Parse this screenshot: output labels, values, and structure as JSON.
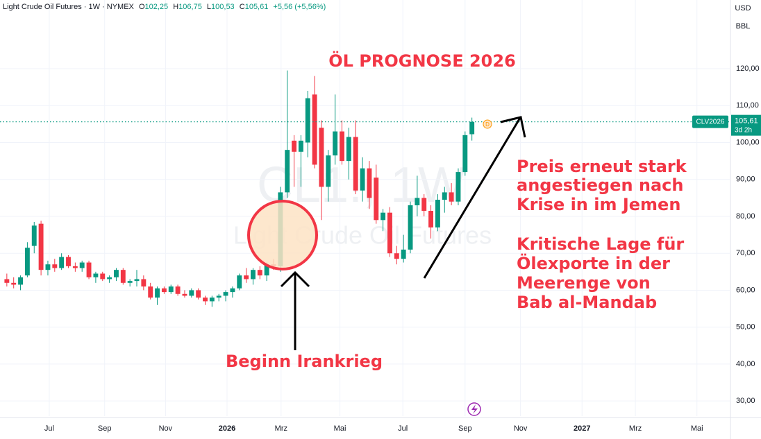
{
  "chart_data": {
    "type": "candlestick",
    "header": {
      "symbol": "Light Crude Oil Futures · 1W · NYMEX",
      "o_label": "O",
      "o": "102,25",
      "h_label": "H",
      "h": "106,75",
      "l_label": "L",
      "l": "100,53",
      "c_label": "C",
      "c": "105,61",
      "change": "+5,56 (+5,56%)"
    },
    "currency": "USD",
    "unit": "BBL",
    "watermark": [
      "CL1!, 1W",
      "Light Crude Oil Futures"
    ],
    "title": "ÖL PROGNOSE 2026",
    "annotations": [
      "Beginn Irankrieg",
      "Preis erneut stark",
      "angestiegen nach",
      "Krise in im Jemen",
      "Kritische Lage für",
      "Ölexporte in der",
      "Meerenge von",
      "Bab al-Mandab"
    ],
    "last_price": {
      "value": 105.61,
      "label": "105,61",
      "countdown": "3d 2h",
      "contract": "CLV2026"
    },
    "up_color": "#089981",
    "down_color": "#f23645",
    "xlim": [
      0,
      106.8
    ],
    "ylim": [
      25.9,
      138.6
    ],
    "xticks": [
      {
        "value": 7.2,
        "label": "Jul"
      },
      {
        "value": 15.3,
        "label": "Sep"
      },
      {
        "value": 24.2,
        "label": "Nov"
      },
      {
        "value": 33.2,
        "label": "2026"
      },
      {
        "value": 41.1,
        "label": "Mrz"
      },
      {
        "value": 49.7,
        "label": "Mai"
      },
      {
        "value": 58.9,
        "label": "Jul"
      },
      {
        "value": 68.0,
        "label": "Sep"
      },
      {
        "value": 76.1,
        "label": "Nov"
      },
      {
        "value": 85.1,
        "label": "2027"
      },
      {
        "value": 92.9,
        "label": "Mrz"
      },
      {
        "value": 101.9,
        "label": "Mai"
      }
    ],
    "yticks": [
      {
        "value": 30,
        "label": "30,00"
      },
      {
        "value": 40,
        "label": "40,00"
      },
      {
        "value": 50,
        "label": "50,00"
      },
      {
        "value": 60,
        "label": "60,00"
      },
      {
        "value": 70,
        "label": "70,00"
      },
      {
        "value": 80,
        "label": "80,00"
      },
      {
        "value": 90,
        "label": "90,00"
      },
      {
        "value": 100,
        "label": "100,00"
      },
      {
        "value": 110,
        "label": "110,00"
      },
      {
        "value": 120,
        "label": "120,00"
      }
    ],
    "grid": true,
    "x": [
      1,
      2,
      3,
      4,
      5,
      6,
      7,
      8,
      9,
      10,
      11,
      12,
      13,
      14,
      15,
      16,
      17,
      18,
      19,
      20,
      21,
      22,
      23,
      24,
      25,
      26,
      27,
      28,
      29,
      30,
      31,
      32,
      33,
      34,
      35,
      36,
      37,
      38,
      39,
      40,
      41,
      42,
      43,
      44,
      45,
      46,
      47,
      48,
      49,
      50,
      51,
      52,
      53,
      54,
      55,
      56,
      57,
      58,
      59,
      60,
      61,
      62,
      63,
      64,
      65,
      66,
      67,
      68,
      69
    ],
    "open": [
      63,
      62,
      61.5,
      64,
      72,
      78,
      65.5,
      67,
      66,
      69,
      66.5,
      66,
      67.5,
      63.5,
      64.5,
      63,
      63.5,
      65.5,
      62,
      62.5,
      63,
      61,
      58,
      60.5,
      59.5,
      61,
      59,
      58.5,
      60,
      58,
      57,
      58,
      58.5,
      59.5,
      60.5,
      64,
      63,
      65.5,
      64,
      67,
      66.5,
      86.5,
      100.5,
      97.5,
      100,
      113,
      104,
      88,
      96.5,
      103,
      95,
      101.5,
      87,
      93,
      90.5,
      79,
      81,
      70,
      68.5,
      71,
      83,
      85,
      81.5,
      77,
      84.5,
      86.5,
      84,
      92,
      102.25
    ],
    "high": [
      64.5,
      63.5,
      64,
      73,
      78.5,
      78.8,
      68,
      68.5,
      70,
      69.5,
      67.5,
      68,
      68,
      65,
      65,
      64,
      66,
      66,
      63,
      65.5,
      64,
      62,
      61,
      61,
      61.5,
      61.5,
      60,
      60.5,
      60.5,
      58.5,
      58.5,
      59,
      60,
      61,
      64.5,
      66,
      66,
      66.5,
      67.5,
      68.5,
      88,
      119.5,
      102,
      102,
      114,
      118,
      106,
      98,
      113,
      106,
      104,
      106,
      96,
      95,
      94,
      82,
      82.5,
      72,
      75,
      84,
      91,
      86,
      83,
      86,
      88,
      89,
      93,
      103,
      106.75
    ],
    "low": [
      61,
      60.5,
      60,
      63.5,
      70,
      64,
      64,
      65,
      65.5,
      66,
      65,
      65,
      63,
      62,
      62.5,
      62,
      62.5,
      61.5,
      61,
      61,
      60,
      57.5,
      56,
      59,
      59,
      58.5,
      58,
      58,
      57.5,
      56,
      55.5,
      57,
      57,
      58,
      60,
      62,
      61.5,
      63,
      62.5,
      65.5,
      65,
      85,
      88,
      88,
      96,
      93,
      79,
      84,
      94,
      94,
      90,
      86,
      84,
      82,
      78,
      76,
      69,
      67,
      67.5,
      70,
      80,
      80,
      74,
      76,
      81,
      83,
      83,
      91,
      100.53
    ],
    "close": [
      62,
      61.5,
      63.5,
      71.5,
      77.5,
      65.5,
      67,
      66,
      69,
      66.5,
      66,
      67.5,
      63.5,
      64.5,
      63,
      63.5,
      65.5,
      62,
      62.5,
      63,
      61,
      58,
      60.5,
      59.5,
      61,
      59,
      58.5,
      60,
      58,
      57,
      58,
      58.5,
      59.5,
      60.5,
      64,
      63,
      65.5,
      64,
      67,
      66.5,
      86.5,
      98,
      97.5,
      100.5,
      112,
      94,
      88,
      96.5,
      103,
      95,
      101.5,
      87,
      93,
      85,
      79,
      81,
      70,
      68.5,
      71,
      83,
      85,
      81.5,
      77,
      84.5,
      86.5,
      84,
      92,
      102,
      105.61
    ]
  }
}
